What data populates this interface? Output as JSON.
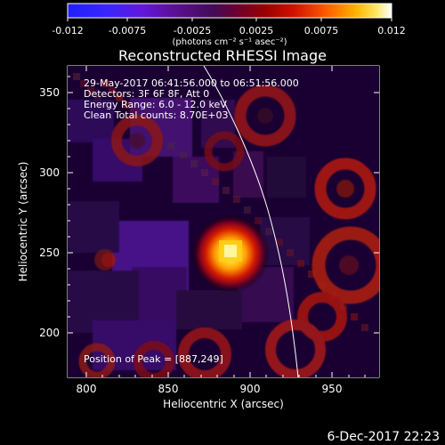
{
  "colorbar": {
    "tick_labels": [
      "-0.012",
      "-0.0075",
      "-0.0025",
      "0.0025",
      "0.0075",
      "0.012"
    ],
    "unit_label_html": "(photons cm⁻² s⁻¹ asec⁻²)",
    "colors": [
      "#1f1fff",
      "#4b2cff",
      "#5b0ab9",
      "#4f0a6e",
      "#6a0040",
      "#8f0000",
      "#b30000",
      "#e21000",
      "#ff5a00",
      "#ff9a00",
      "#ffd400",
      "#ffffff"
    ]
  },
  "plot": {
    "title": "Reconstructed RHESSI Image",
    "x_axis_label": "Heliocentric X (arcsec)",
    "y_axis_label": "Heliocentric Y (arcsec)",
    "x_ticks": [
      "800",
      "850",
      "900",
      "950"
    ],
    "y_ticks": [
      "200",
      "250",
      "300",
      "350"
    ],
    "info_lines": [
      "29-May-2017 06:41:56.000 to 06:51:56.000",
      "Detectors: 3F 6F 8F, Att 0",
      "Energy Range: 6.0 - 12.0 keV",
      "Clean    Total counts: 8.70E+03"
    ],
    "peak_label": "Position of Peak = [887,249]",
    "footer_timestamp": "6-Dec-2017 22:23"
  }
}
